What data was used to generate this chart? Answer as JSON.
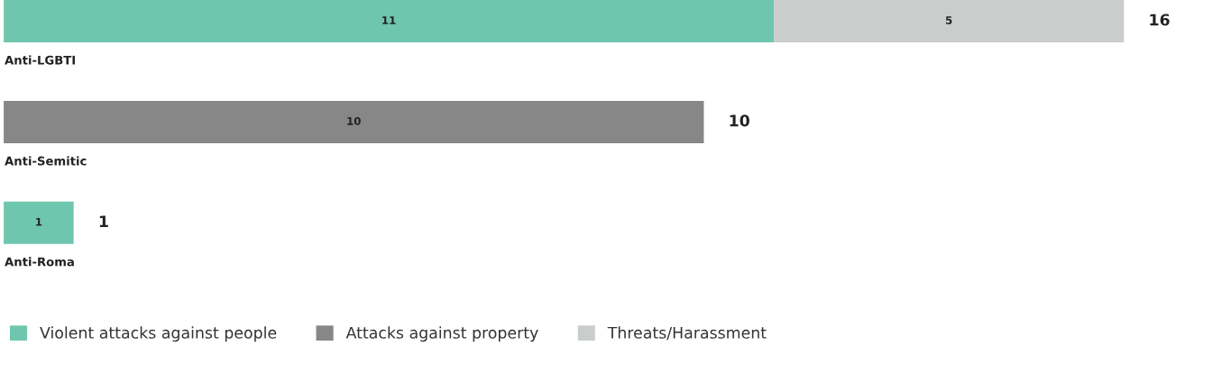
{
  "chart_data": {
    "type": "bar",
    "orientation": "horizontal",
    "stacked": true,
    "categories": [
      "Anti-LGBTI",
      "Anti-Semitic",
      "Anti-Roma"
    ],
    "series": [
      {
        "name": "Violent attacks against people",
        "color": "#6fc6ae",
        "values": [
          11,
          null,
          1
        ],
        "value_labels": [
          "11",
          null,
          "1"
        ]
      },
      {
        "name": "Attacks against property",
        "color": "#878787",
        "values": [
          null,
          10,
          null
        ],
        "value_labels": [
          null,
          "10",
          null
        ]
      },
      {
        "name": "Threats/Harassment",
        "color": "#c9cdcc",
        "values": [
          5,
          null,
          null
        ],
        "value_labels": [
          "5",
          null,
          null
        ]
      }
    ],
    "totals": [
      "16",
      "10",
      "1"
    ],
    "legend": "bottom left"
  }
}
